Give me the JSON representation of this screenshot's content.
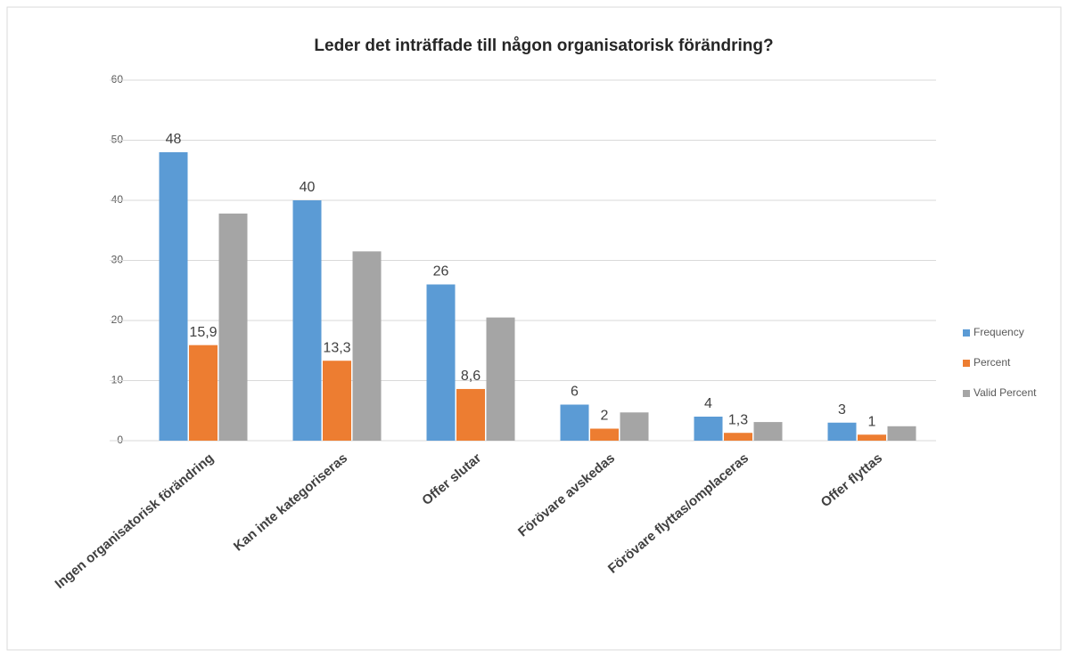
{
  "chart_data": {
    "type": "bar",
    "title": "Leder det inträffade till någon organisatorisk förändring?",
    "categories": [
      "Ingen organisatorisk förändring",
      "Kan inte kategoriseras",
      "Offer slutar",
      "Förövare avskedas",
      "Förövare flyttas/omplaceras",
      "Offer flyttas"
    ],
    "series": [
      {
        "name": "Frequency",
        "color": "#5b9bd5",
        "values": [
          48,
          40,
          26,
          6,
          4,
          3
        ],
        "data_labels": true
      },
      {
        "name": "Percent",
        "color": "#ed7d31",
        "values": [
          15.9,
          13.3,
          8.6,
          2,
          1.3,
          1
        ],
        "value_labels": [
          "15,9",
          "13,3",
          "8,6",
          "2",
          "1,3",
          "1"
        ],
        "data_labels": true
      },
      {
        "name": "Valid Percent",
        "color": "#a5a5a5",
        "values": [
          37.8,
          31.5,
          20.5,
          4.7,
          3.1,
          2.4
        ],
        "data_labels": false
      }
    ],
    "ylim": [
      0,
      60
    ],
    "yticks": [
      0,
      10,
      20,
      30,
      40,
      50,
      60
    ],
    "grid": true,
    "legend": "right"
  }
}
